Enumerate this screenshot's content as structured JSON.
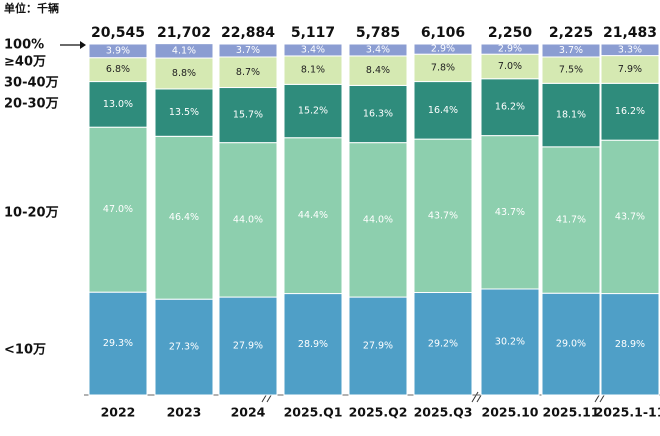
{
  "chart_data": {
    "type": "stacked-bar-100",
    "unit": "单位：千辆",
    "top_label": "100%",
    "categories": [
      "2022",
      "2023",
      "2024",
      "2025.Q1",
      "2025.Q2",
      "2025.Q3",
      "2025.10",
      "2025.11",
      "2025.1-11"
    ],
    "ylim": [
      0,
      100
    ],
    "totals": {
      "values": [
        20545,
        21702,
        22884,
        5117,
        5785,
        6106,
        2250,
        2225,
        21483
      ],
      "value_labels": [
        "20,545",
        "21,702",
        "22,884",
        "5,117",
        "5,785",
        "6,106",
        "2,250",
        "2,225",
        "21,483"
      ]
    },
    "series": [
      {
        "name": "<10万",
        "color": "#4f9fc7",
        "text_color": "#ffffff",
        "values": [
          29.3,
          27.3,
          27.9,
          28.9,
          27.9,
          29.2,
          30.2,
          29.0,
          28.9
        ],
        "value_labels": [
          "29.3%",
          "27.3%",
          "27.9%",
          "28.9%",
          "27.9%",
          "29.2%",
          "30.2%",
          "29.0%",
          "28.9%"
        ]
      },
      {
        "name": "10-20万",
        "color": "#8dcfae",
        "text_color": "#ffffff",
        "values": [
          47.0,
          46.4,
          44.0,
          44.4,
          44.0,
          43.7,
          43.7,
          41.7,
          43.7
        ],
        "value_labels": [
          "47.0%",
          "46.4%",
          "44.0%",
          "44.4%",
          "44.0%",
          "43.7%",
          "43.7%",
          "41.7%",
          "43.7%"
        ]
      },
      {
        "name": "20-30万",
        "color": "#2f8c7c",
        "text_color": "#ffffff",
        "values": [
          13.0,
          13.5,
          15.7,
          15.2,
          16.3,
          16.4,
          16.2,
          18.1,
          16.2
        ],
        "value_labels": [
          "13.0%",
          "13.5%",
          "15.7%",
          "15.2%",
          "16.3%",
          "16.4%",
          "16.2%",
          "18.1%",
          "16.2%"
        ]
      },
      {
        "name": "30-40万",
        "color": "#d5e9b2",
        "text_color": "#222222",
        "values": [
          6.8,
          8.8,
          8.7,
          8.1,
          8.4,
          7.8,
          7.0,
          7.5,
          7.9
        ],
        "value_labels": [
          "6.8%",
          "8.8%",
          "8.7%",
          "8.1%",
          "8.4%",
          "7.8%",
          "7.0%",
          "7.5%",
          "7.9%"
        ]
      },
      {
        "name": "≥40万",
        "color": "#8b9dd2",
        "text_color": "#ffffff",
        "values": [
          3.9,
          4.1,
          3.7,
          3.4,
          3.4,
          2.9,
          2.9,
          3.7,
          3.3
        ],
        "value_labels": [
          "3.9%",
          "4.1%",
          "3.7%",
          "3.4%",
          "3.4%",
          "2.9%",
          "2.9%",
          "3.7%",
          "3.3%"
        ]
      }
    ]
  }
}
